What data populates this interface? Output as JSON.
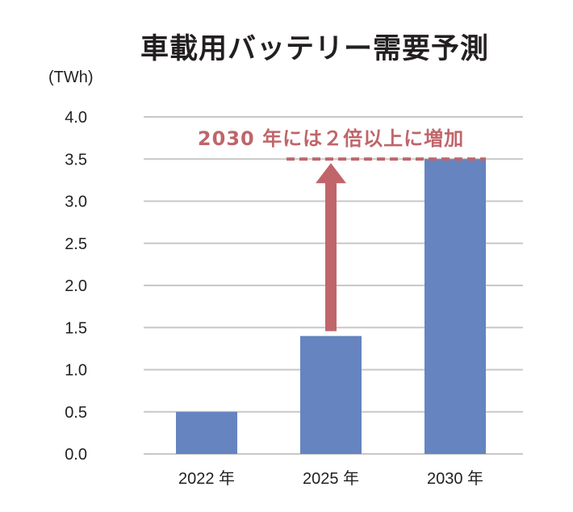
{
  "chart_data": {
    "type": "bar",
    "title": "車載用バッテリー需要予測",
    "unit_label": "(TWh)",
    "categories": [
      "2022 年",
      "2025 年",
      "2030 年"
    ],
    "values": [
      0.5,
      1.4,
      3.5
    ],
    "ylim": [
      0,
      4.0
    ],
    "yticks": [
      "0.0",
      "0.5",
      "1.0",
      "1.5",
      "2.0",
      "2.5",
      "3.0",
      "3.5",
      "4.0"
    ],
    "grid": true,
    "annotation": {
      "text": "2030 年には２倍以上に増加",
      "arrow_from_value": 1.4,
      "arrow_to_value": 3.5
    }
  },
  "colors": {
    "bar": "#6584c0",
    "grid": "#c8c8c8",
    "annotation": "#c0656a",
    "text": "#231f20"
  }
}
